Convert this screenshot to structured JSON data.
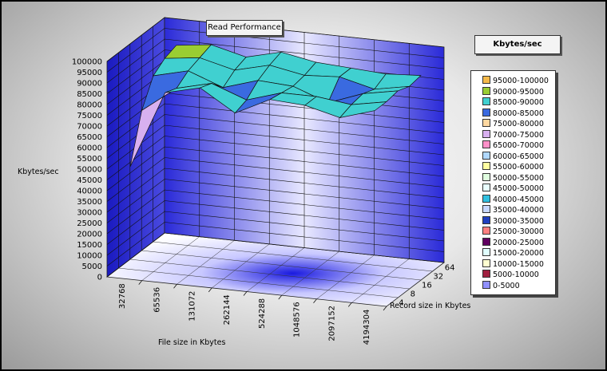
{
  "chart_data": {
    "type": "surface",
    "title": "Read Performance",
    "legend_title": "Kbytes/sec",
    "ylabel": "Kbytes/sec",
    "xlabel": "File size in Kbytes",
    "zlabel": "Record size in Kbytes",
    "ylim": [
      0,
      100000
    ],
    "y_ticks": [
      "100000",
      "95000",
      "90000",
      "85000",
      "80000",
      "75000",
      "70000",
      "65000",
      "60000",
      "55000",
      "50000",
      "45000",
      "40000",
      "35000",
      "30000",
      "25000",
      "20000",
      "15000",
      "10000",
      "5000",
      "0"
    ],
    "file_sizes": [
      "32768",
      "65536",
      "131072",
      "262144",
      "524288",
      "1048576",
      "2097152",
      "4194304"
    ],
    "record_sizes": [
      "4",
      "8",
      "16",
      "32",
      "64"
    ],
    "values": [
      [
        50000,
        86000,
        90000,
        80000,
        88000,
        87000,
        83000,
        88000
      ],
      [
        72000,
        84000,
        88000,
        82000,
        87000,
        87000,
        85000,
        88000
      ],
      [
        84000,
        88000,
        82000,
        87000,
        86000,
        80000,
        86000,
        89000
      ],
      [
        88000,
        90000,
        86000,
        90000,
        87000,
        88000,
        84000,
        87000
      ],
      [
        90000,
        92000,
        88000,
        92000,
        89000,
        88000,
        87000,
        88000
      ]
    ],
    "legend": [
      {
        "label": "95000-100000",
        "color": "#f5b94a"
      },
      {
        "label": "90000-95000",
        "color": "#9acd32"
      },
      {
        "label": "85000-90000",
        "color": "#40d0d0"
      },
      {
        "label": "80000-85000",
        "color": "#3a6ae0"
      },
      {
        "label": "75000-80000",
        "color": "#ffd8a0"
      },
      {
        "label": "70000-75000",
        "color": "#d8b0f0"
      },
      {
        "label": "65000-70000",
        "color": "#ff90c8"
      },
      {
        "label": "60000-65000",
        "color": "#b0d8ff"
      },
      {
        "label": "55000-60000",
        "color": "#ffffa0"
      },
      {
        "label": "50000-55000",
        "color": "#e0ffe0"
      },
      {
        "label": "45000-50000",
        "color": "#e8ffff"
      },
      {
        "label": "40000-45000",
        "color": "#30c0e0"
      },
      {
        "label": "35000-40000",
        "color": "#c8d8ff"
      },
      {
        "label": "30000-35000",
        "color": "#2040c0"
      },
      {
        "label": "25000-30000",
        "color": "#ff8080"
      },
      {
        "label": "20000-25000",
        "color": "#600060"
      },
      {
        "label": "15000-20000",
        "color": "#e0ffff"
      },
      {
        "label": "10000-15000",
        "color": "#ffffd0"
      },
      {
        "label": "5000-10000",
        "color": "#a02040"
      },
      {
        "label": "0-5000",
        "color": "#9090ff"
      }
    ]
  }
}
